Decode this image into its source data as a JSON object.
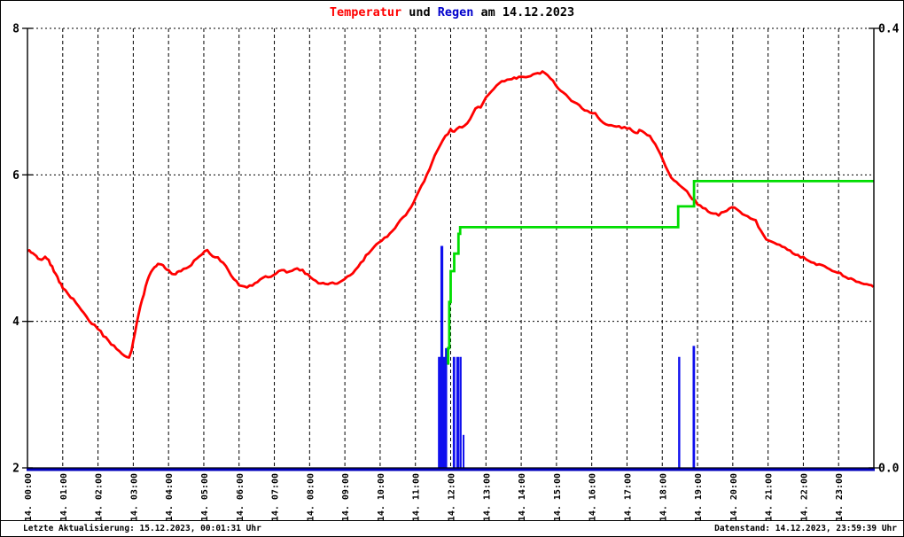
{
  "title": {
    "part1": "Temperatur",
    "part2": " und ",
    "part3": "Regen",
    "part4": " am 14.12.2023",
    "color_part1": "#ff0000",
    "color_part3": "#0000cc",
    "color_rest": "#000000"
  },
  "footer": {
    "left": "Letzte Aktualisierung: 15.12.2023, 00:01:31 Uhr",
    "right": "Datenstand: 14.12.2023, 23:59:39 Uhr"
  },
  "chart_data": {
    "type": "line",
    "subtype": "composite-line-bar-step",
    "title": "Temperatur und Regen am 14.12.2023",
    "grid": "dashed vertical hourly, dotted horizontal at 4 and 6",
    "x_axis": {
      "range_hours": [
        0,
        24
      ],
      "tick_labels": [
        "14. 00:00",
        "14. 01:00",
        "14. 02:00",
        "14. 03:00",
        "14. 04:00",
        "14. 05:00",
        "14. 06:00",
        "14. 07:00",
        "14. 08:00",
        "14. 09:00",
        "14. 10:00",
        "14. 11:00",
        "14. 12:00",
        "14. 13:00",
        "14. 14:00",
        "14. 15:00",
        "14. 16:00",
        "14. 17:00",
        "14. 18:00",
        "14. 19:00",
        "14. 20:00",
        "14. 21:00",
        "14. 22:00",
        "14. 23:00"
      ]
    },
    "y_left": {
      "label": "Temperatur",
      "range": [
        2,
        8
      ],
      "tick_labels": [
        "8",
        "6",
        "4",
        "2"
      ],
      "tick_values": [
        8,
        6,
        4,
        2
      ],
      "gridline_values": [
        6,
        4
      ]
    },
    "y_right": {
      "label": "Regen",
      "range": [
        0,
        0.4
      ],
      "tick_labels": [
        "0.4",
        "0.0"
      ],
      "tick_values": [
        0.4,
        0.0
      ]
    },
    "colors": {
      "temperature": "#ff0000",
      "rain_bars": "#0f0fee",
      "rain_cumulative": "#00dd00",
      "zero_baseline": "#0000bb",
      "grid": "#000000"
    },
    "series": [
      {
        "name": "temperature",
        "axis": "left",
        "style": "noisy-line",
        "points": [
          [
            0.0,
            4.97
          ],
          [
            0.1,
            4.95
          ],
          [
            0.2,
            4.92
          ],
          [
            0.3,
            4.87
          ],
          [
            0.4,
            4.85
          ],
          [
            0.5,
            4.89
          ],
          [
            0.6,
            4.83
          ],
          [
            0.7,
            4.74
          ],
          [
            0.8,
            4.64
          ],
          [
            0.9,
            4.55
          ],
          [
            1.0,
            4.46
          ],
          [
            1.15,
            4.37
          ],
          [
            1.3,
            4.3
          ],
          [
            1.45,
            4.21
          ],
          [
            1.6,
            4.1
          ],
          [
            1.75,
            4.0
          ],
          [
            1.9,
            3.94
          ],
          [
            2.0,
            3.9
          ],
          [
            2.15,
            3.81
          ],
          [
            2.3,
            3.73
          ],
          [
            2.45,
            3.66
          ],
          [
            2.6,
            3.59
          ],
          [
            2.75,
            3.53
          ],
          [
            2.88,
            3.51
          ],
          [
            2.95,
            3.6
          ],
          [
            3.05,
            3.85
          ],
          [
            3.15,
            4.09
          ],
          [
            3.25,
            4.29
          ],
          [
            3.35,
            4.47
          ],
          [
            3.45,
            4.62
          ],
          [
            3.55,
            4.72
          ],
          [
            3.65,
            4.76
          ],
          [
            3.75,
            4.79
          ],
          [
            3.85,
            4.77
          ],
          [
            3.95,
            4.71
          ],
          [
            4.05,
            4.67
          ],
          [
            4.15,
            4.65
          ],
          [
            4.25,
            4.66
          ],
          [
            4.35,
            4.69
          ],
          [
            4.5,
            4.73
          ],
          [
            4.65,
            4.78
          ],
          [
            4.8,
            4.87
          ],
          [
            4.95,
            4.93
          ],
          [
            5.1,
            4.96
          ],
          [
            5.25,
            4.9
          ],
          [
            5.4,
            4.86
          ],
          [
            5.55,
            4.8
          ],
          [
            5.7,
            4.7
          ],
          [
            5.85,
            4.58
          ],
          [
            6.0,
            4.5
          ],
          [
            6.15,
            4.47
          ],
          [
            6.3,
            4.48
          ],
          [
            6.45,
            4.51
          ],
          [
            6.6,
            4.57
          ],
          [
            6.75,
            4.61
          ],
          [
            6.9,
            4.61
          ],
          [
            7.05,
            4.64
          ],
          [
            7.2,
            4.71
          ],
          [
            7.35,
            4.67
          ],
          [
            7.5,
            4.69
          ],
          [
            7.65,
            4.72
          ],
          [
            7.8,
            4.69
          ],
          [
            7.95,
            4.63
          ],
          [
            8.1,
            4.57
          ],
          [
            8.25,
            4.53
          ],
          [
            8.45,
            4.52
          ],
          [
            8.65,
            4.52
          ],
          [
            8.85,
            4.53
          ],
          [
            9.0,
            4.57
          ],
          [
            9.15,
            4.63
          ],
          [
            9.3,
            4.7
          ],
          [
            9.45,
            4.79
          ],
          [
            9.6,
            4.89
          ],
          [
            9.75,
            4.97
          ],
          [
            9.9,
            5.05
          ],
          [
            10.05,
            5.1
          ],
          [
            10.2,
            5.16
          ],
          [
            10.35,
            5.23
          ],
          [
            10.5,
            5.33
          ],
          [
            10.65,
            5.41
          ],
          [
            10.8,
            5.5
          ],
          [
            10.95,
            5.62
          ],
          [
            11.1,
            5.77
          ],
          [
            11.25,
            5.92
          ],
          [
            11.4,
            6.08
          ],
          [
            11.55,
            6.26
          ],
          [
            11.7,
            6.41
          ],
          [
            11.85,
            6.52
          ],
          [
            12.0,
            6.62
          ],
          [
            12.1,
            6.59
          ],
          [
            12.25,
            6.64
          ],
          [
            12.4,
            6.67
          ],
          [
            12.55,
            6.76
          ],
          [
            12.7,
            6.9
          ],
          [
            12.78,
            6.94
          ],
          [
            12.85,
            6.92
          ],
          [
            13.0,
            7.06
          ],
          [
            13.15,
            7.15
          ],
          [
            13.3,
            7.22
          ],
          [
            13.45,
            7.27
          ],
          [
            13.6,
            7.3
          ],
          [
            13.8,
            7.32
          ],
          [
            14.0,
            7.34
          ],
          [
            14.2,
            7.35
          ],
          [
            14.4,
            7.37
          ],
          [
            14.6,
            7.4
          ],
          [
            14.75,
            7.36
          ],
          [
            14.9,
            7.28
          ],
          [
            15.05,
            7.19
          ],
          [
            15.2,
            7.11
          ],
          [
            15.35,
            7.05
          ],
          [
            15.5,
            6.99
          ],
          [
            15.65,
            6.94
          ],
          [
            15.8,
            6.89
          ],
          [
            15.95,
            6.85
          ],
          [
            16.1,
            6.83
          ],
          [
            16.25,
            6.74
          ],
          [
            16.4,
            6.69
          ],
          [
            16.55,
            6.68
          ],
          [
            16.7,
            6.66
          ],
          [
            16.85,
            6.65
          ],
          [
            17.0,
            6.64
          ],
          [
            17.15,
            6.61
          ],
          [
            17.25,
            6.57
          ],
          [
            17.35,
            6.6
          ],
          [
            17.5,
            6.57
          ],
          [
            17.65,
            6.52
          ],
          [
            17.8,
            6.41
          ],
          [
            17.95,
            6.27
          ],
          [
            18.1,
            6.11
          ],
          [
            18.25,
            5.97
          ],
          [
            18.4,
            5.89
          ],
          [
            18.55,
            5.84
          ],
          [
            18.7,
            5.78
          ],
          [
            18.85,
            5.68
          ],
          [
            19.0,
            5.61
          ],
          [
            19.15,
            5.56
          ],
          [
            19.3,
            5.51
          ],
          [
            19.45,
            5.46
          ],
          [
            19.6,
            5.46
          ],
          [
            19.75,
            5.49
          ],
          [
            19.9,
            5.54
          ],
          [
            20.05,
            5.56
          ],
          [
            20.2,
            5.5
          ],
          [
            20.35,
            5.44
          ],
          [
            20.5,
            5.41
          ],
          [
            20.65,
            5.37
          ],
          [
            20.8,
            5.23
          ],
          [
            20.95,
            5.13
          ],
          [
            21.1,
            5.08
          ],
          [
            21.25,
            5.05
          ],
          [
            21.4,
            5.02
          ],
          [
            21.55,
            4.98
          ],
          [
            21.7,
            4.93
          ],
          [
            21.85,
            4.9
          ],
          [
            22.0,
            4.87
          ],
          [
            22.15,
            4.84
          ],
          [
            22.3,
            4.8
          ],
          [
            22.45,
            4.77
          ],
          [
            22.6,
            4.74
          ],
          [
            22.75,
            4.71
          ],
          [
            22.9,
            4.68
          ],
          [
            23.05,
            4.65
          ],
          [
            23.2,
            4.61
          ],
          [
            23.35,
            4.58
          ],
          [
            23.5,
            4.55
          ],
          [
            23.65,
            4.53
          ],
          [
            23.8,
            4.5
          ],
          [
            23.99,
            4.47
          ]
        ]
      },
      {
        "name": "rain_bars",
        "axis": "right",
        "style": "bars",
        "bars": [
          {
            "h_start": 11.64,
            "h_end": 11.9,
            "value": 0.101
          },
          {
            "h_start": 11.71,
            "h_end": 11.79,
            "value": 0.202
          },
          {
            "h_start": 11.84,
            "h_end": 11.9,
            "value": 0.109
          },
          {
            "h_start": 12.06,
            "h_end": 12.13,
            "value": 0.101
          },
          {
            "h_start": 12.16,
            "h_end": 12.24,
            "value": 0.101
          },
          {
            "h_start": 12.25,
            "h_end": 12.31,
            "value": 0.101
          },
          {
            "h_start": 12.34,
            "h_end": 12.37,
            "value": 0.03
          },
          {
            "h_start": 18.45,
            "h_end": 18.51,
            "value": 0.101
          },
          {
            "h_start": 18.86,
            "h_end": 18.93,
            "value": 0.111
          }
        ]
      },
      {
        "name": "rain_cumulative",
        "axis": "right",
        "style": "step",
        "start": {
          "h": 11.9,
          "value": 0.095
        },
        "steps": [
          {
            "h": 11.93,
            "value": 0.109
          },
          {
            "h": 11.96,
            "value": 0.151
          },
          {
            "h": 12.0,
            "value": 0.179
          },
          {
            "h": 12.1,
            "value": 0.195
          },
          {
            "h": 12.22,
            "value": 0.213
          },
          {
            "h": 12.27,
            "value": 0.219
          },
          {
            "h": 18.45,
            "value": 0.238
          },
          {
            "h": 18.9,
            "value": 0.261
          }
        ],
        "end_hour": 24,
        "final_value": 0.26
      }
    ]
  }
}
